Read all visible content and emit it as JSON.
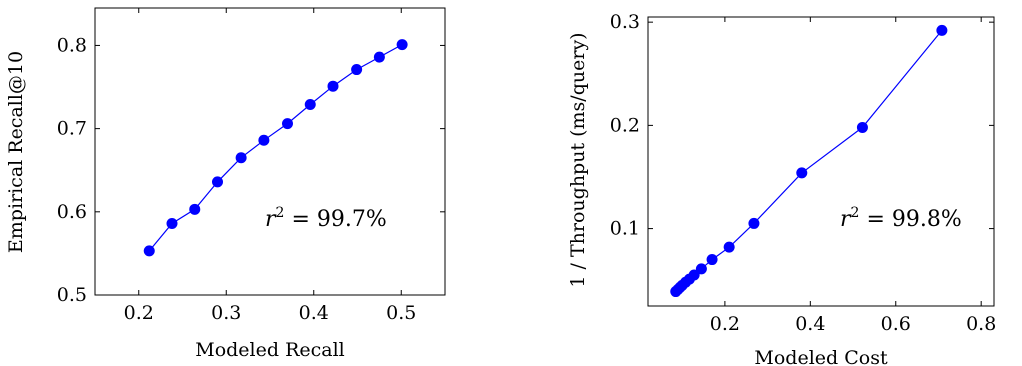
{
  "chart_data": [
    {
      "type": "line",
      "xlabel": "Modeled Recall",
      "ylabel": "Empirical Recall@10",
      "xlim": [
        0.15,
        0.55
      ],
      "ylim": [
        0.5,
        0.845
      ],
      "xticks": [
        0.2,
        0.3,
        0.4,
        0.5
      ],
      "yticks": [
        0.5,
        0.6,
        0.7,
        0.8
      ],
      "xtick_labels": [
        "0.2",
        "0.3",
        "0.4",
        "0.5"
      ],
      "ytick_labels": [
        "0.5",
        "0.6",
        "0.7",
        "0.8"
      ],
      "annotation": {
        "base": "r",
        "sup": "2",
        "rest": " = 99.7%",
        "position": "middle-right"
      },
      "grid": false,
      "color": "#0000ff",
      "series": [
        {
          "x": [
            0.212,
            0.238,
            0.264,
            0.29,
            0.317,
            0.343,
            0.37,
            0.396,
            0.422,
            0.449,
            0.475,
            0.501
          ],
          "y": [
            0.553,
            0.586,
            0.603,
            0.636,
            0.665,
            0.686,
            0.706,
            0.729,
            0.751,
            0.771,
            0.786,
            0.801
          ]
        }
      ]
    },
    {
      "type": "line",
      "xlabel": "Modeled Cost",
      "ylabel": "1 / Throughput (ms/query)",
      "xlim": [
        0.02,
        0.83
      ],
      "ylim": [
        0.025,
        0.305
      ],
      "xticks": [
        0.2,
        0.4,
        0.6,
        0.8
      ],
      "yticks": [
        0.1,
        0.2,
        0.3
      ],
      "xtick_labels": [
        "0.2",
        "0.4",
        "0.6",
        "0.8"
      ],
      "ytick_labels": [
        "0.1",
        "0.2",
        "0.3"
      ],
      "annotation": {
        "base": "r",
        "sup": "2",
        "rest": " = 99.8%",
        "position": "middle-right"
      },
      "grid": false,
      "color": "#0000ff",
      "series": [
        {
          "x": [
            0.085,
            0.09,
            0.095,
            0.1,
            0.108,
            0.117,
            0.128,
            0.145,
            0.17,
            0.21,
            0.268,
            0.38,
            0.522,
            0.708
          ],
          "y": [
            0.039,
            0.041,
            0.043,
            0.045,
            0.048,
            0.051,
            0.055,
            0.061,
            0.07,
            0.082,
            0.105,
            0.154,
            0.198,
            0.292
          ]
        }
      ]
    }
  ]
}
